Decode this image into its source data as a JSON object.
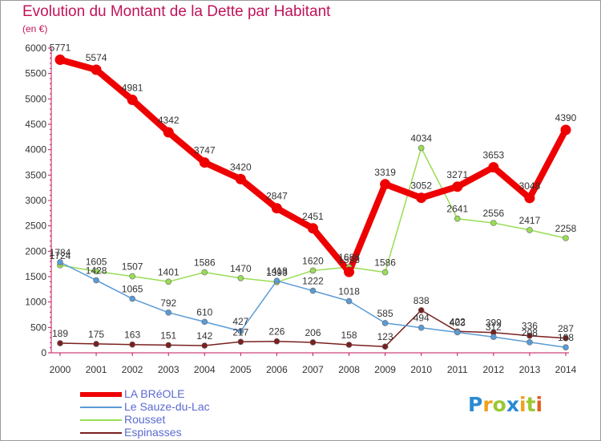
{
  "chart_data": {
    "type": "line",
    "title": "Evolution du Montant de la Dette par Habitant",
    "subtitle": "(en €)",
    "ylim": [
      0,
      6000
    ],
    "yticks": [
      0,
      500,
      1000,
      1500,
      2000,
      2500,
      3000,
      3500,
      4000,
      4500,
      5000,
      5500,
      6000
    ],
    "x": [
      "2000",
      "2001",
      "2002",
      "2003",
      "2004",
      "2005",
      "2006",
      "2007",
      "2008",
      "2009",
      "2010",
      "2011",
      "2012",
      "2013",
      "2014"
    ],
    "grid": false,
    "legend_position": "bottom-left",
    "series": [
      {
        "name": "LA BRéOLE",
        "color": "#ee0000",
        "values": [
          5771,
          5574,
          4981,
          4342,
          3747,
          3420,
          2847,
          2451,
          1593,
          3319,
          3052,
          3271,
          3653,
          3048,
          4390
        ],
        "labels": [
          "5771",
          "5574",
          "4981",
          "4342",
          "3747",
          "3420",
          "2847",
          "2451",
          "1593",
          "3319",
          "3052",
          "3271",
          "3653",
          "3048",
          "4390"
        ]
      },
      {
        "name": "Le Sauze-du-Lac",
        "color": "#5b9bd5",
        "values": [
          1784,
          1428,
          1065,
          792,
          610,
          427,
          1418,
          1222,
          1018,
          585,
          494,
          403,
          312,
          208,
          108
        ],
        "labels": [
          "1784",
          "1428",
          "1065",
          "792",
          "610",
          "427",
          "1418",
          "1222",
          "1018",
          "585",
          "494",
          "403",
          "312",
          "208",
          "108"
        ]
      },
      {
        "name": "Rousset",
        "color": "#99dd55",
        "values": [
          1724,
          1605,
          1507,
          1401,
          1586,
          1470,
          1393,
          1620,
          1688,
          1586,
          4034,
          2641,
          2556,
          2417,
          2258
        ],
        "labels": [
          "1724",
          "1605",
          "1507",
          "1401",
          "1586",
          "1470",
          "1393",
          "1620",
          "1688",
          "1586",
          "4034",
          "2641",
          "2556",
          "2417",
          "2258"
        ]
      },
      {
        "name": "Espinasses",
        "color": "#7a2020",
        "values": [
          189,
          175,
          163,
          151,
          142,
          217,
          226,
          206,
          158,
          123,
          838,
          422,
          399,
          336,
          287
        ],
        "labels": [
          "189",
          "175",
          "163",
          "151",
          "142",
          "217",
          "226",
          "206",
          "158",
          "123",
          "838",
          "422",
          "399",
          "336",
          "287"
        ]
      }
    ]
  },
  "logo": {
    "letters": [
      "P",
      "r",
      "o",
      "x",
      "i",
      "t",
      "i"
    ],
    "colors": [
      "#2a8ad4",
      "#f0a020",
      "#9ac832",
      "#2a8ad4",
      "#f0a020",
      "#9ac832",
      "#e06020"
    ]
  }
}
